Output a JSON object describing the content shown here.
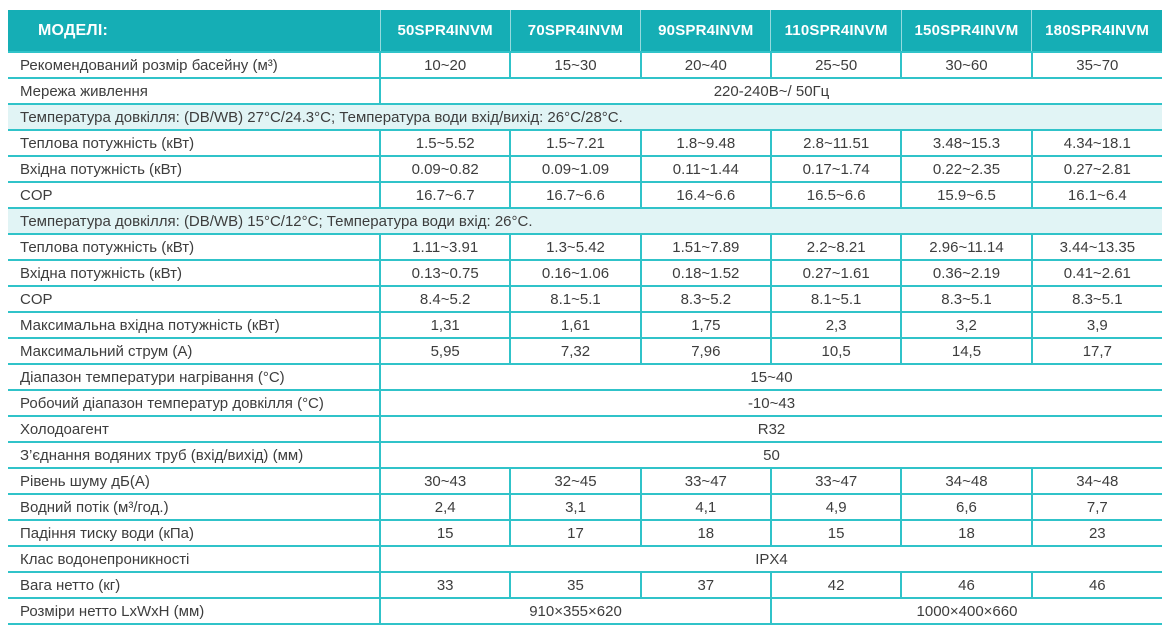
{
  "theme": {
    "header_bg": "#15aeb5",
    "grid_line": "#30c3c9",
    "section_bg": "#e1f4f5",
    "text": "#3d3d3d"
  },
  "table": {
    "header": {
      "label": "МОДЕЛІ:",
      "models": [
        "50SPR4INVM",
        "70SPR4INVM",
        "90SPR4INVM",
        "110SPR4INVM",
        "150SPR4INVM",
        "180SPR4INVM"
      ]
    },
    "rows": [
      {
        "type": "data",
        "label": "Рекомендований розмір басейну (м³)",
        "cells": [
          {
            "text": "10~20",
            "span": 1
          },
          {
            "text": "15~30",
            "span": 1
          },
          {
            "text": "20~40",
            "span": 1
          },
          {
            "text": "25~50",
            "span": 1
          },
          {
            "text": "30~60",
            "span": 1
          },
          {
            "text": "35~70",
            "span": 1
          }
        ]
      },
      {
        "type": "data",
        "label": "Мережа живлення",
        "cells": [
          {
            "text": "220-240В~/ 50Гц",
            "span": 6
          }
        ]
      },
      {
        "type": "section",
        "label": "Температура довкілля: (DB/WB) 27°C/24.3°C; Температура води вхід/вихід: 26°C/28°C."
      },
      {
        "type": "data",
        "label": "Теплова потужність (кВт)",
        "cells": [
          {
            "text": "1.5~5.52",
            "span": 1
          },
          {
            "text": "1.5~7.21",
            "span": 1
          },
          {
            "text": "1.8~9.48",
            "span": 1
          },
          {
            "text": "2.8~11.51",
            "span": 1
          },
          {
            "text": "3.48~15.3",
            "span": 1
          },
          {
            "text": "4.34~18.1",
            "span": 1
          }
        ]
      },
      {
        "type": "data",
        "label": "Вхідна потужність (кВт)",
        "cells": [
          {
            "text": "0.09~0.82",
            "span": 1
          },
          {
            "text": "0.09~1.09",
            "span": 1
          },
          {
            "text": "0.11~1.44",
            "span": 1
          },
          {
            "text": "0.17~1.74",
            "span": 1
          },
          {
            "text": "0.22~2.35",
            "span": 1
          },
          {
            "text": "0.27~2.81",
            "span": 1
          }
        ]
      },
      {
        "type": "data",
        "label": "COP",
        "cells": [
          {
            "text": "16.7~6.7",
            "span": 1
          },
          {
            "text": "16.7~6.6",
            "span": 1
          },
          {
            "text": "16.4~6.6",
            "span": 1
          },
          {
            "text": "16.5~6.6",
            "span": 1
          },
          {
            "text": "15.9~6.5",
            "span": 1
          },
          {
            "text": "16.1~6.4",
            "span": 1
          }
        ]
      },
      {
        "type": "section",
        "label": "Температура довкілля: (DB/WB) 15°C/12°C; Температура води вхід: 26°C."
      },
      {
        "type": "data",
        "label": "Теплова потужність (кВт)",
        "cells": [
          {
            "text": "1.11~3.91",
            "span": 1
          },
          {
            "text": "1.3~5.42",
            "span": 1
          },
          {
            "text": "1.51~7.89",
            "span": 1
          },
          {
            "text": "2.2~8.21",
            "span": 1
          },
          {
            "text": "2.96~11.14",
            "span": 1
          },
          {
            "text": "3.44~13.35",
            "span": 1
          }
        ]
      },
      {
        "type": "data",
        "label": "Вхідна потужність (кВт)",
        "cells": [
          {
            "text": "0.13~0.75",
            "span": 1
          },
          {
            "text": "0.16~1.06",
            "span": 1
          },
          {
            "text": "0.18~1.52",
            "span": 1
          },
          {
            "text": "0.27~1.61",
            "span": 1
          },
          {
            "text": "0.36~2.19",
            "span": 1
          },
          {
            "text": "0.41~2.61",
            "span": 1
          }
        ]
      },
      {
        "type": "data",
        "label": "COP",
        "cells": [
          {
            "text": "8.4~5.2",
            "span": 1
          },
          {
            "text": "8.1~5.1",
            "span": 1
          },
          {
            "text": "8.3~5.2",
            "span": 1
          },
          {
            "text": "8.1~5.1",
            "span": 1
          },
          {
            "text": "8.3~5.1",
            "span": 1
          },
          {
            "text": "8.3~5.1",
            "span": 1
          }
        ]
      },
      {
        "type": "data",
        "label": "Максимальна вхідна потужність (кВт)",
        "cells": [
          {
            "text": "1,31",
            "span": 1
          },
          {
            "text": "1,61",
            "span": 1
          },
          {
            "text": "1,75",
            "span": 1
          },
          {
            "text": "2,3",
            "span": 1
          },
          {
            "text": "3,2",
            "span": 1
          },
          {
            "text": "3,9",
            "span": 1
          }
        ]
      },
      {
        "type": "data",
        "label": "Максимальний струм (А)",
        "cells": [
          {
            "text": "5,95",
            "span": 1
          },
          {
            "text": "7,32",
            "span": 1
          },
          {
            "text": "7,96",
            "span": 1
          },
          {
            "text": "10,5",
            "span": 1
          },
          {
            "text": "14,5",
            "span": 1
          },
          {
            "text": "17,7",
            "span": 1
          }
        ]
      },
      {
        "type": "data",
        "label": "Діапазон температури нагрівання (°С)",
        "cells": [
          {
            "text": "15~40",
            "span": 6
          }
        ]
      },
      {
        "type": "data",
        "label": "Робочий діапазон температур довкілля (°С)",
        "cells": [
          {
            "text": "-10~43",
            "span": 6
          }
        ]
      },
      {
        "type": "data",
        "label": "Холодоагент",
        "cells": [
          {
            "text": "R32",
            "span": 6
          }
        ]
      },
      {
        "type": "data",
        "label": "З’єднання водяних труб (вхід/вихід) (мм)",
        "cells": [
          {
            "text": "50",
            "span": 6
          }
        ]
      },
      {
        "type": "data",
        "label": "Рівень шуму дБ(А)",
        "cells": [
          {
            "text": "30~43",
            "span": 1
          },
          {
            "text": "32~45",
            "span": 1
          },
          {
            "text": "33~47",
            "span": 1
          },
          {
            "text": "33~47",
            "span": 1
          },
          {
            "text": "34~48",
            "span": 1
          },
          {
            "text": "34~48",
            "span": 1
          }
        ]
      },
      {
        "type": "data",
        "label": "Водний потік (м³/год.)",
        "cells": [
          {
            "text": "2,4",
            "span": 1
          },
          {
            "text": "3,1",
            "span": 1
          },
          {
            "text": "4,1",
            "span": 1
          },
          {
            "text": "4,9",
            "span": 1
          },
          {
            "text": "6,6",
            "span": 1
          },
          {
            "text": "7,7",
            "span": 1
          }
        ]
      },
      {
        "type": "data",
        "label": "Падіння тиску води (кПа)",
        "cells": [
          {
            "text": "15",
            "span": 1
          },
          {
            "text": "17",
            "span": 1
          },
          {
            "text": "18",
            "span": 1
          },
          {
            "text": "15",
            "span": 1
          },
          {
            "text": "18",
            "span": 1
          },
          {
            "text": "23",
            "span": 1
          }
        ]
      },
      {
        "type": "data",
        "label": "Клас водонепроникності",
        "cells": [
          {
            "text": "IPX4",
            "span": 6
          }
        ]
      },
      {
        "type": "data",
        "label": "Вага нетто (кг)",
        "cells": [
          {
            "text": "33",
            "span": 1
          },
          {
            "text": "35",
            "span": 1
          },
          {
            "text": "37",
            "span": 1
          },
          {
            "text": "42",
            "span": 1
          },
          {
            "text": "46",
            "span": 1
          },
          {
            "text": "46",
            "span": 1
          }
        ]
      },
      {
        "type": "data",
        "label": "Розміри нетто LxWxH (мм)",
        "cells": [
          {
            "text": "910×355×620",
            "span": 3
          },
          {
            "text": "1000×400×660",
            "span": 3
          }
        ]
      }
    ]
  }
}
